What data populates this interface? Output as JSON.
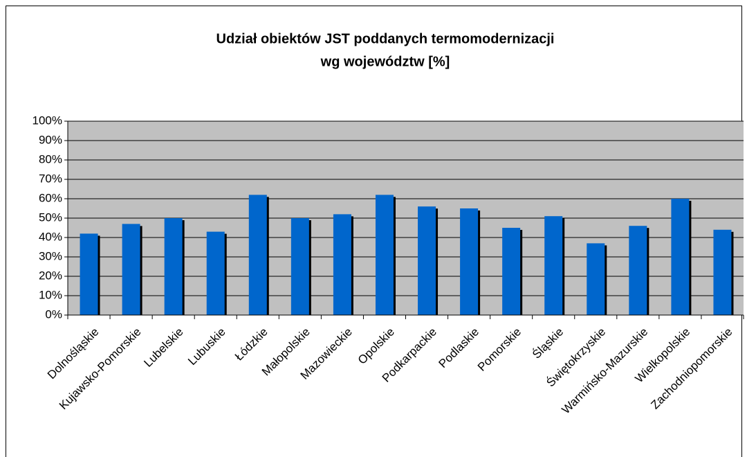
{
  "chart_data": {
    "type": "bar",
    "title": [
      "Udział obiektów JST poddanych termomodernizacji",
      "wg województw [%]"
    ],
    "categories": [
      "Dolnośląskie",
      "Kujawsko-Pomorskie",
      "Lubelskie",
      "Lubuskie",
      "Łódzkie",
      "Małopolskie",
      "Mazowieckie",
      "Opolskie",
      "Podkarpackie",
      "Podlaskie",
      "Pomorskie",
      "Śląskie",
      "Świętokrzyskie",
      "Warmińsko-Mazurskie",
      "Wielkopolskie",
      "Zachodniopomorskie"
    ],
    "values": [
      42,
      47,
      50,
      43,
      62,
      50,
      52,
      62,
      56,
      55,
      45,
      51,
      37,
      46,
      60,
      44
    ],
    "color": "#0066cc",
    "ylim": [
      0,
      100
    ],
    "yticks": [
      {
        "value": 0,
        "label": "0%"
      },
      {
        "value": 10,
        "label": "10%"
      },
      {
        "value": 20,
        "label": "20%"
      },
      {
        "value": 30,
        "label": "30%"
      },
      {
        "value": 40,
        "label": "40%"
      },
      {
        "value": 50,
        "label": "50%"
      },
      {
        "value": 60,
        "label": "60%"
      },
      {
        "value": 70,
        "label": "70%"
      },
      {
        "value": 80,
        "label": "80%"
      },
      {
        "value": 90,
        "label": "90%"
      },
      {
        "value": 100,
        "label": "100%"
      }
    ],
    "grid": true
  }
}
